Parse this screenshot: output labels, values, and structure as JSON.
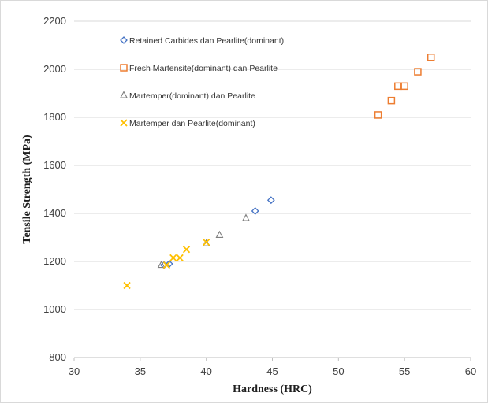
{
  "chart_data": {
    "type": "scatter",
    "title": "",
    "xlabel": "Hardness (HRC)",
    "ylabel": "Tensile Strength (MPa)",
    "xlim": [
      30,
      60
    ],
    "ylim": [
      800,
      2200
    ],
    "xticks": [
      30,
      35,
      40,
      45,
      50,
      55,
      60
    ],
    "yticks": [
      800,
      1000,
      1200,
      1400,
      1600,
      1800,
      2000,
      2200
    ],
    "grid": "horizontal",
    "legend_position": "top-left",
    "series": [
      {
        "name": "Retained Carbides dan Pearlite(dominant)",
        "marker": "diamond",
        "color": "#4472c4",
        "points": [
          [
            36.8,
            1185
          ],
          [
            37.2,
            1190
          ],
          [
            43.7,
            1410
          ],
          [
            44.9,
            1455
          ]
        ]
      },
      {
        "name": "Fresh Martensite(dominant) dan Pearlite",
        "marker": "square",
        "color": "#ed7d31",
        "points": [
          [
            53.0,
            1810
          ],
          [
            54.0,
            1870
          ],
          [
            54.5,
            1930
          ],
          [
            55.0,
            1930
          ],
          [
            56.0,
            1990
          ],
          [
            57.0,
            2050
          ]
        ]
      },
      {
        "name": "Martemper(dominant) dan Pearlite",
        "marker": "triangle",
        "color": "#7f7f7f",
        "points": [
          [
            36.6,
            1185
          ],
          [
            40.0,
            1275
          ],
          [
            41.0,
            1310
          ],
          [
            43.0,
            1380
          ]
        ]
      },
      {
        "name": "Martemper dan Pearlite(dominant)",
        "marker": "x",
        "color": "#ffc000",
        "points": [
          [
            34.0,
            1100
          ],
          [
            37.0,
            1185
          ],
          [
            37.5,
            1215
          ],
          [
            38.0,
            1215
          ],
          [
            38.5,
            1250
          ],
          [
            40.0,
            1280
          ]
        ]
      }
    ]
  }
}
